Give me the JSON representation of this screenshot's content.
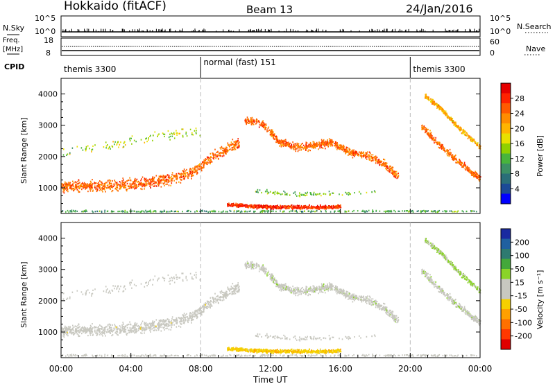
{
  "header": {
    "station": "Hokkaido (fitACF)",
    "beam": "Beam 13",
    "date": "24/Jan/2016"
  },
  "top_panels": {
    "nsky_label": "N.Sky",
    "nsky_ticks": [
      "10^5",
      "10^0"
    ],
    "nsearch_label": "N.Search",
    "nsearch_ticks": [
      "10^5",
      "10^0"
    ],
    "freq_label_line1": "Freq.",
    "freq_label_line2": "[MHz]",
    "freq_ticks": [
      "18",
      "8"
    ],
    "nave_label": "Nave",
    "nave_ticks": [
      "60",
      "0"
    ],
    "cpid_label": "CPID"
  },
  "cpid_segments": [
    {
      "label": "themis 3300",
      "start_hour": 0,
      "end_hour": 8
    },
    {
      "label": "normal (fast) 151",
      "start_hour": 8,
      "end_hour": 20
    },
    {
      "label": "themis 3300",
      "start_hour": 20,
      "end_hour": 24
    }
  ],
  "power_panel": {
    "ylabel": "Slant Range [km]",
    "yticks": [
      "4000",
      "3000",
      "2000",
      "1000"
    ],
    "colorbar_label": "Power [dB]",
    "colorbar_ticks": [
      "28",
      "24",
      "20",
      "16",
      "12",
      "8",
      "4"
    ],
    "colors": [
      "#e60000",
      "#ff2200",
      "#ff5a00",
      "#ff8c00",
      "#ffb400",
      "#e8e000",
      "#8fd000",
      "#48b43c",
      "#3c9064",
      "#2a6e78",
      "#1c4a96",
      "#0000ff"
    ]
  },
  "velocity_panel": {
    "ylabel": "Slant Range [km]",
    "yticks": [
      "4000",
      "3000",
      "2000",
      "1000"
    ],
    "colorbar_label": "Velocity [m s⁻¹]",
    "colorbar_ticks": [
      "200",
      "100",
      "50",
      "15",
      "-15",
      "-50",
      "-100",
      "-200"
    ],
    "colors": [
      "#1a2aa0",
      "#2060a0",
      "#2e7a70",
      "#44a83a",
      "#8ad428",
      "#c8c8c0",
      "#c8c8c0",
      "#f5d000",
      "#ffa000",
      "#ff7000",
      "#ff3800",
      "#e00000"
    ]
  },
  "time_axis": {
    "label": "Time UT",
    "ticks": [
      "00:00",
      "04:00",
      "08:00",
      "12:00",
      "16:00",
      "20:00",
      "00:00"
    ]
  },
  "chart_data": {
    "type": "heatmap",
    "title": "Hokkaido (fitACF)   Beam 13   24/Jan/2016",
    "xlabel": "Time UT",
    "ylabel": "Slant Range [km]",
    "xlim_hours": [
      0,
      24
    ],
    "ylim_km": [
      180,
      4500
    ],
    "panels": [
      {
        "name": "Power",
        "unit": "dB",
        "color_range": [
          0,
          30
        ]
      },
      {
        "name": "Velocity",
        "unit": "m s⁻¹",
        "color_range": [
          -200,
          200
        ]
      }
    ],
    "scatter_bands": [
      {
        "t": [
          0,
          2,
          4,
          6,
          7.5,
          8.3,
          9,
          9.6,
          10.2
        ],
        "r": [
          1050,
          1050,
          1100,
          1250,
          1500,
          1850,
          2100,
          2300,
          2450
        ],
        "width_km": 500,
        "power_db": 24,
        "velocity": -10
      },
      {
        "t": [
          0,
          2,
          4,
          6,
          8
        ],
        "r": [
          2100,
          2300,
          2500,
          2700,
          2800
        ],
        "width_km": 500,
        "power_db": 14,
        "velocity": 5,
        "sparse": true
      },
      {
        "t": [
          10.5,
          11.5,
          12.5,
          13.5,
          14.5,
          15.5,
          16.5,
          17.5,
          18.5,
          19.3
        ],
        "r": [
          3150,
          3050,
          2450,
          2300,
          2350,
          2450,
          2150,
          2050,
          1750,
          1350
        ],
        "width_km": 350,
        "power_db": 24,
        "velocity": 20
      },
      {
        "t": [
          20.6,
          21.5,
          22.5,
          23.5,
          24
        ],
        "r": [
          3000,
          2450,
          1950,
          1500,
          1300
        ],
        "width_km": 300,
        "power_db": 24,
        "velocity": 25
      },
      {
        "t": [
          20.8,
          21.7,
          22.6,
          23.5,
          24
        ],
        "r": [
          3950,
          3550,
          3000,
          2550,
          2300
        ],
        "width_km": 220,
        "power_db": 20,
        "velocity": 40
      },
      {
        "t": [
          9.5,
          11,
          13,
          15,
          16
        ],
        "r": [
          470,
          400,
          380,
          380,
          400
        ],
        "width_km": 170,
        "power_db": 27,
        "velocity": -60
      },
      {
        "t": [
          11,
          13,
          15,
          17,
          18
        ],
        "r": [
          900,
          800,
          800,
          850,
          900
        ],
        "width_km": 200,
        "power_db": 12,
        "velocity": 0,
        "sparse": true
      },
      {
        "t": [
          0,
          6,
          12,
          18,
          24
        ],
        "r": [
          250,
          250,
          250,
          250,
          250
        ],
        "width_km": 80,
        "power_db": 10,
        "velocity": 0,
        "sparse": true
      }
    ]
  }
}
